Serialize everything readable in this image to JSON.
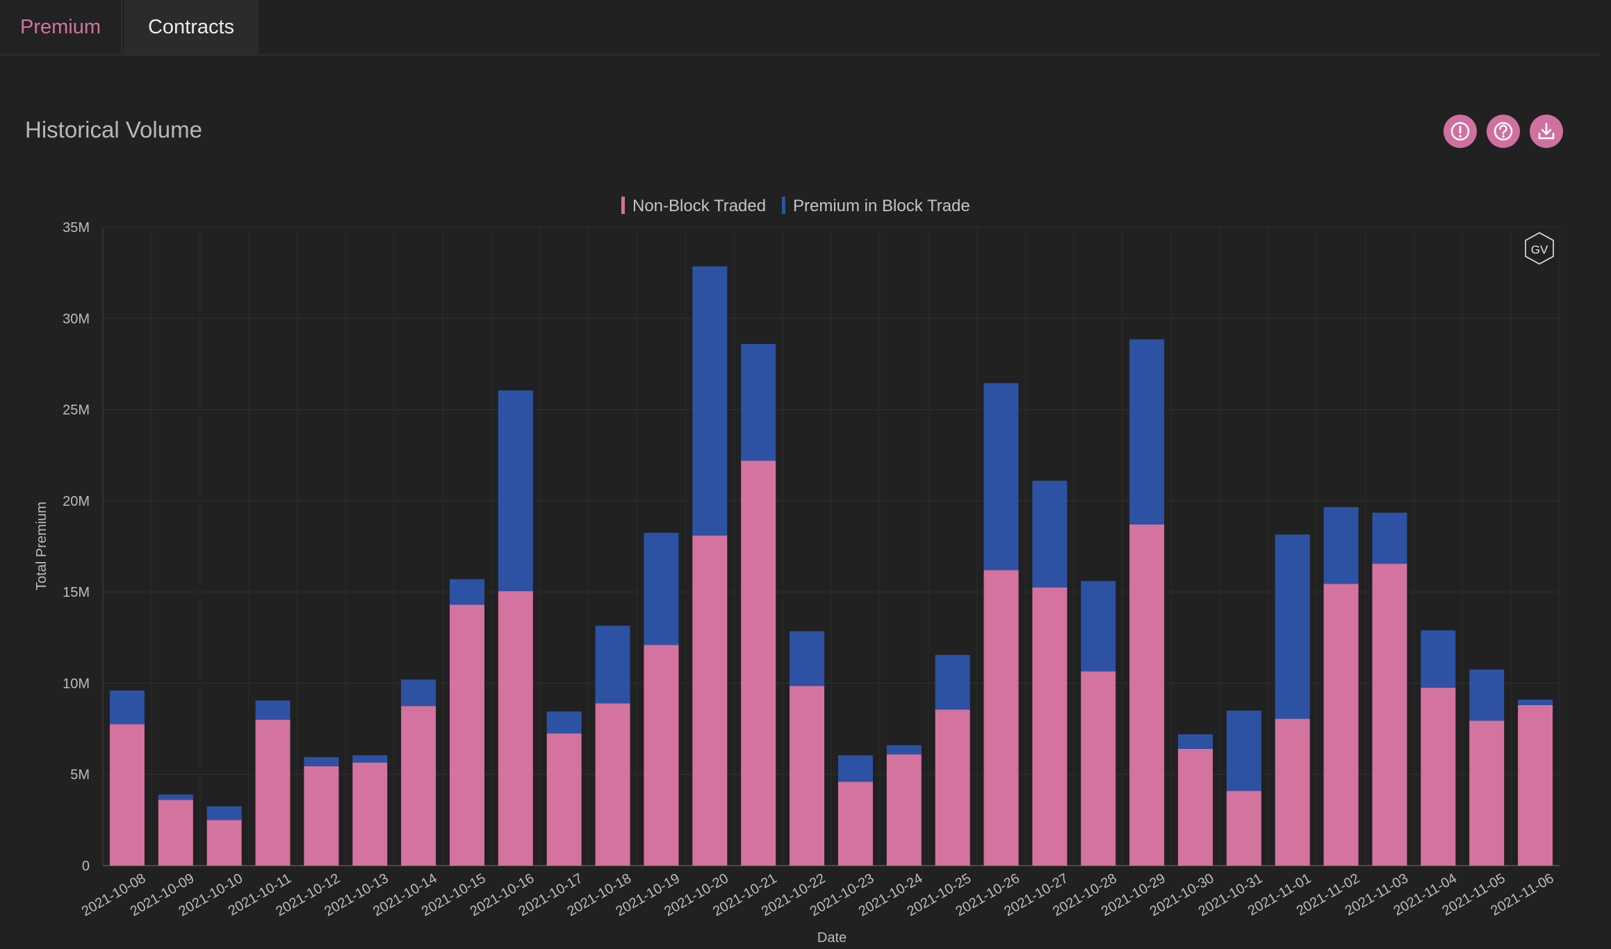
{
  "tabs": [
    {
      "label": "Premium",
      "active": true
    },
    {
      "label": "Contracts",
      "active": false
    }
  ],
  "page_title": "Historical Volume",
  "toolbar": {
    "icons": [
      "alert-icon",
      "help-icon",
      "download-icon"
    ]
  },
  "watermark": "GV",
  "colors": {
    "background": "#212121",
    "accent": "#d070a0",
    "non_block": "#d4739f",
    "block": "#2d52a3"
  },
  "chart_data": {
    "type": "bar",
    "stacked": true,
    "title": "",
    "xlabel": "Date",
    "ylabel": "Total Premium",
    "ylim": [
      0,
      35000000
    ],
    "yticks": [
      0,
      5000000,
      10000000,
      15000000,
      20000000,
      25000000,
      30000000,
      35000000
    ],
    "ytick_labels": [
      "0",
      "5M",
      "10M",
      "15M",
      "20M",
      "25M",
      "30M",
      "35M"
    ],
    "grid": true,
    "legend_position": "top-center",
    "categories": [
      "2021-10-08",
      "2021-10-09",
      "2021-10-10",
      "2021-10-11",
      "2021-10-12",
      "2021-10-13",
      "2021-10-14",
      "2021-10-15",
      "2021-10-16",
      "2021-10-17",
      "2021-10-18",
      "2021-10-19",
      "2021-10-20",
      "2021-10-21",
      "2021-10-22",
      "2021-10-23",
      "2021-10-24",
      "2021-10-25",
      "2021-10-26",
      "2021-10-27",
      "2021-10-28",
      "2021-10-29",
      "2021-10-30",
      "2021-10-31",
      "2021-11-01",
      "2021-11-02",
      "2021-11-03",
      "2021-11-04",
      "2021-11-05",
      "2021-11-06"
    ],
    "series": [
      {
        "name": "Non-Block Traded",
        "color": "#d4739f",
        "values": [
          7750000,
          3600000,
          2500000,
          8000000,
          5450000,
          5650000,
          8750000,
          14300000,
          15050000,
          7250000,
          8900000,
          12100000,
          18100000,
          22200000,
          9850000,
          4600000,
          6100000,
          8550000,
          16200000,
          15250000,
          10650000,
          18700000,
          6400000,
          4100000,
          8050000,
          15450000,
          16550000,
          9750000,
          7950000,
          8800000
        ]
      },
      {
        "name": "Premium in Block Trade",
        "color": "#2d52a3",
        "values": [
          1850000,
          300000,
          750000,
          1050000,
          500000,
          400000,
          1450000,
          1400000,
          11000000,
          1200000,
          4250000,
          6150000,
          14750000,
          6400000,
          3000000,
          1450000,
          500000,
          3000000,
          10250000,
          5850000,
          4950000,
          10150000,
          800000,
          4400000,
          10100000,
          4200000,
          2800000,
          3150000,
          2800000,
          300000
        ]
      }
    ]
  }
}
